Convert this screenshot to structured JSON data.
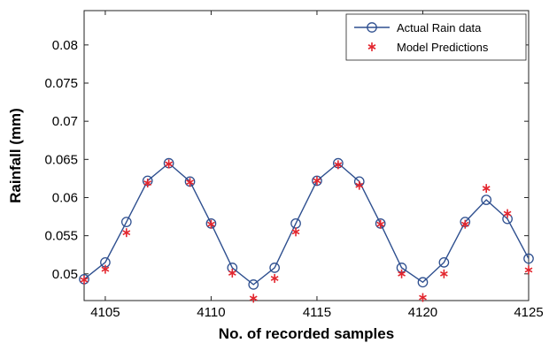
{
  "chart_data": {
    "type": "line",
    "xlabel": "No. of recorded samples",
    "ylabel": "Rainfall (mm)",
    "xlim": [
      4104,
      4125
    ],
    "ylim": [
      0.0465,
      0.0845
    ],
    "xticks": [
      4105,
      4110,
      4115,
      4120,
      4125
    ],
    "yticks": [
      0.05,
      0.055,
      0.06,
      0.065,
      0.07,
      0.075,
      0.08
    ],
    "ytick_labels": [
      "0.05",
      "0.055",
      "0.06",
      "0.065",
      "0.07",
      "0.075",
      "0.08"
    ],
    "grid": false,
    "legend_position": "top-right",
    "x": [
      4104,
      4105,
      4106,
      4107,
      4108,
      4109,
      4110,
      4111,
      4112,
      4113,
      4114,
      4115,
      4116,
      4117,
      4118,
      4119,
      4120,
      4121,
      4122,
      4123,
      4124,
      4125
    ],
    "series": [
      {
        "name": "Actual Rain data",
        "marker": "circle",
        "color": "#2e4f8f",
        "values": [
          0.0493,
          0.0515,
          0.0568,
          0.0622,
          0.0645,
          0.0621,
          0.0566,
          0.0508,
          0.0486,
          0.0508,
          0.0566,
          0.0622,
          0.0645,
          0.0621,
          0.0566,
          0.0508,
          0.0489,
          0.0515,
          0.0568,
          0.0597,
          0.0572,
          0.052
        ]
      },
      {
        "name": "Model Predictions",
        "marker": "asterisk",
        "color": "#e3262e",
        "values": [
          0.0492,
          0.0506,
          0.0554,
          0.0619,
          0.0644,
          0.062,
          0.0565,
          0.0501,
          0.0468,
          0.0494,
          0.0555,
          0.0622,
          0.0643,
          0.0616,
          0.0565,
          0.05,
          0.0469,
          0.05,
          0.0565,
          0.0612,
          0.0579,
          0.0505
        ]
      }
    ]
  }
}
